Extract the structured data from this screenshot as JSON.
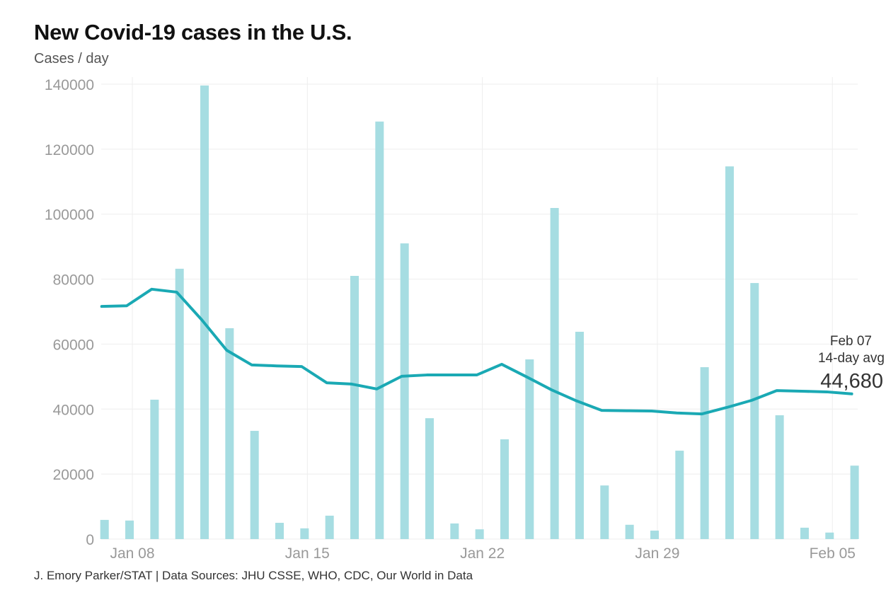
{
  "chart_data": {
    "type": "bar",
    "title": "New Covid-19 cases in the U.S.",
    "ylabel": "Cases / day",
    "source": "J. Emory Parker/STAT | Data Sources: JHU CSSE, WHO, CDC, Our World in Data",
    "ylim": [
      0,
      140000
    ],
    "yticks": [
      "0",
      "20000",
      "40000",
      "60000",
      "80000",
      "100000",
      "120000",
      "140000"
    ],
    "xticks": [
      "Jan 08",
      "Jan 15",
      "Jan 22",
      "Jan 29",
      "Feb 05"
    ],
    "grid": true,
    "colors": {
      "bars": "#a6dde2",
      "line": "#1aa9b4"
    },
    "categories": [
      "Jan 07",
      "Jan 08",
      "Jan 09",
      "Jan 10",
      "Jan 11",
      "Jan 12",
      "Jan 13",
      "Jan 14",
      "Jan 15",
      "Jan 16",
      "Jan 17",
      "Jan 18",
      "Jan 19",
      "Jan 20",
      "Jan 21",
      "Jan 22",
      "Jan 23",
      "Jan 24",
      "Jan 25",
      "Jan 26",
      "Jan 27",
      "Jan 28",
      "Jan 29",
      "Jan 30",
      "Jan 31",
      "Feb 01",
      "Feb 02",
      "Feb 03",
      "Feb 04",
      "Feb 05",
      "Feb 06"
    ],
    "series": [
      {
        "type": "bar",
        "values": [
          5900,
          5700,
          42900,
          83200,
          139600,
          64900,
          33300,
          5000,
          3300,
          7200,
          81000,
          128500,
          91000,
          37200,
          4800,
          3000,
          30700,
          55300,
          101900,
          63800,
          16500,
          4400,
          2600,
          27200,
          52900,
          114700,
          78800,
          38100,
          3500,
          2000,
          22600
        ]
      },
      {
        "type": "line",
        "values": [
          71600,
          71800,
          76900,
          76000,
          67500,
          58100,
          53600,
          53300,
          53100,
          48100,
          47700,
          46200,
          50100,
          50500,
          50500,
          50500,
          53800,
          49900,
          45900,
          42500,
          39600,
          39500,
          39400,
          38800,
          38500,
          40500,
          42700,
          45700,
          45500,
          45300,
          44680
        ]
      }
    ],
    "annotation": {
      "date": "Feb 07",
      "label": "14-day avg",
      "value": "44,680"
    }
  }
}
